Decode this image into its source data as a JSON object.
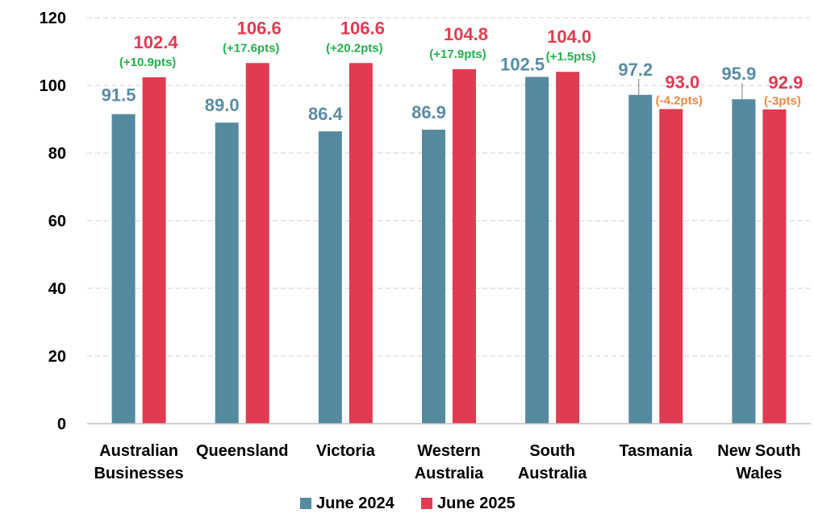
{
  "chart_data": {
    "type": "bar",
    "categories": [
      [
        "Australian",
        "Businesses"
      ],
      [
        "Queensland"
      ],
      [
        "Victoria"
      ],
      [
        "Western",
        "Australia"
      ],
      [
        "South",
        "Australia"
      ],
      [
        "Tasmania"
      ],
      [
        "New South",
        "Wales"
      ]
    ],
    "series": [
      {
        "name": "June 2024",
        "color": "#5589A0",
        "label_color": "#5A8CA3",
        "values": [
          91.5,
          89.0,
          86.4,
          86.9,
          102.5,
          97.2,
          95.9
        ],
        "labels": [
          "91.5",
          "89.0",
          "86.4",
          "86.9",
          "102.5",
          "97.2",
          "95.9"
        ]
      },
      {
        "name": "June 2025",
        "color": "#E03B51",
        "label_color": "#E03B51",
        "values": [
          102.4,
          106.6,
          106.6,
          104.8,
          104.0,
          93.0,
          92.9
        ],
        "labels": [
          "102.4",
          "106.6",
          "106.6",
          "104.8",
          "104.0",
          "93.0",
          "92.9"
        ]
      }
    ],
    "changes": [
      {
        "text": "(+10.9pts)",
        "direction": "up"
      },
      {
        "text": "(+17.6pts)",
        "direction": "up"
      },
      {
        "text": "(+20.2pts)",
        "direction": "up"
      },
      {
        "text": "(+17.9pts)",
        "direction": "up"
      },
      {
        "text": "(+1.5pts)",
        "direction": "up"
      },
      {
        "text": "(-4.2pts)",
        "direction": "down"
      },
      {
        "text": "(-3pts)",
        "direction": "down"
      }
    ],
    "change_colors": {
      "up": "#22B14C",
      "down": "#F0883E"
    },
    "yticks": [
      "0",
      "20",
      "40",
      "60",
      "80",
      "100",
      "120"
    ],
    "ylim": [
      0,
      120
    ],
    "grid": true,
    "legend_position": "bottom",
    "title": "",
    "xlabel": "",
    "ylabel": ""
  }
}
